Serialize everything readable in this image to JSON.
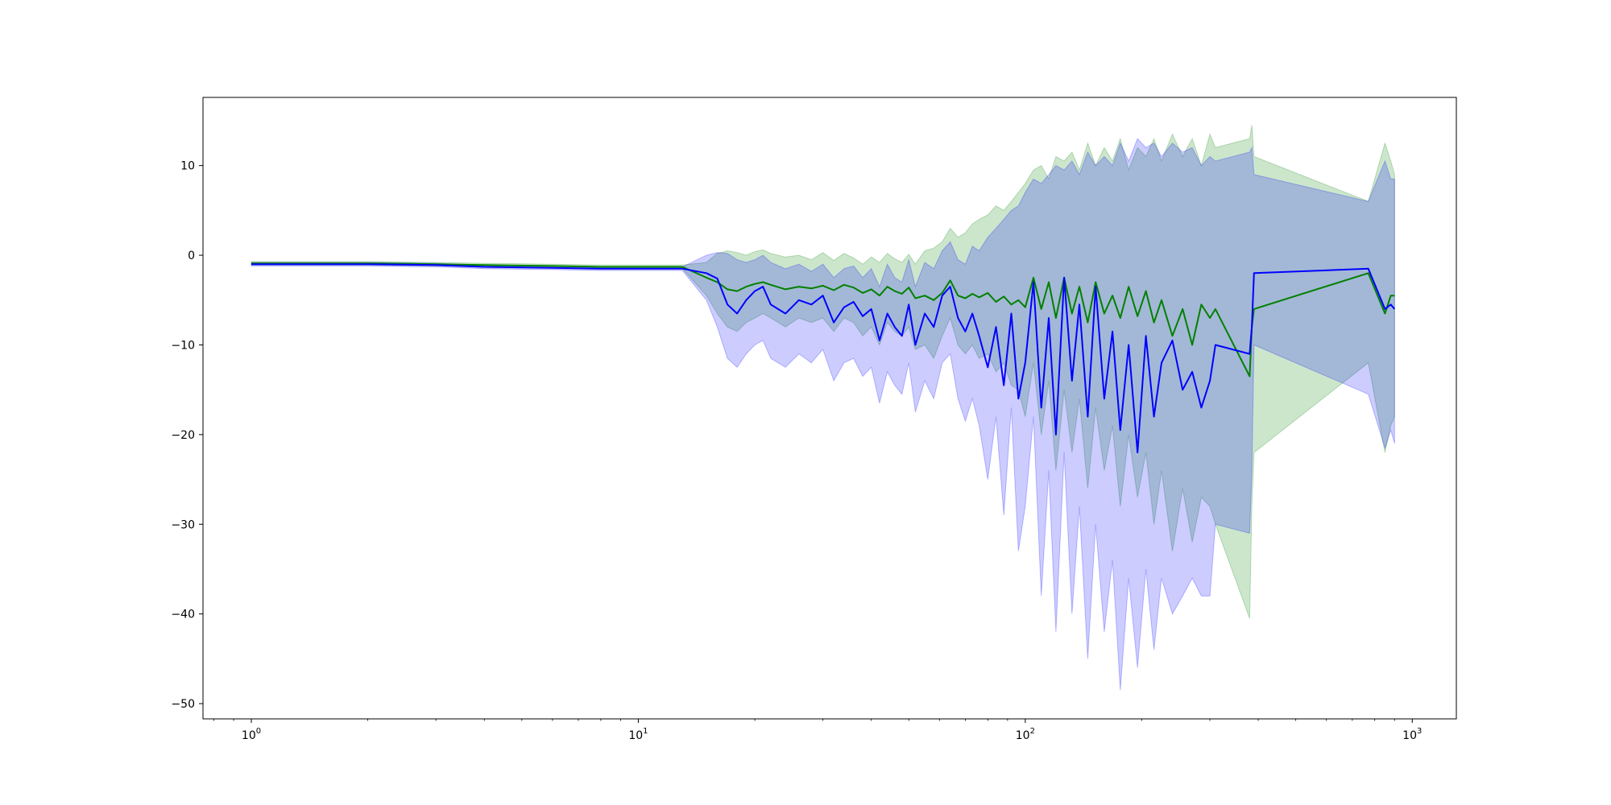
{
  "chart_data": {
    "type": "line",
    "title": "",
    "xlabel": "",
    "ylabel": "",
    "x_scale": "log",
    "xlim": [
      0.75,
      1300
    ],
    "ylim": [
      -51.7,
      17.6
    ],
    "grid": false,
    "legend": "none",
    "x_tick_labels": [
      {
        "value": 1,
        "base": "10",
        "exp": "0"
      },
      {
        "value": 10,
        "base": "10",
        "exp": "1"
      },
      {
        "value": 100,
        "base": "10",
        "exp": "2"
      },
      {
        "value": 1000,
        "base": "10",
        "exp": "3"
      }
    ],
    "y_ticks": [
      10,
      0,
      -10,
      -20,
      -30,
      -40,
      -50
    ],
    "y_tick_labels": [
      "10",
      "0",
      "−10",
      "−20",
      "−30",
      "−40",
      "−50"
    ],
    "series": [
      {
        "color": "#008000",
        "band_color": "#008000",
        "band_opacity": 0.2,
        "x": [
          1,
          2,
          3,
          4,
          6,
          8,
          10,
          13,
          15,
          16,
          17,
          18,
          19,
          20,
          21,
          22,
          24,
          26,
          28,
          30,
          32,
          34,
          36,
          38,
          40,
          42,
          44,
          46,
          48,
          50,
          52,
          55,
          58,
          61,
          64,
          67,
          70,
          73,
          76,
          80,
          84,
          88,
          92,
          96,
          100,
          105,
          110,
          115,
          120,
          126,
          132,
          138,
          145,
          152,
          160,
          168,
          176,
          185,
          195,
          205,
          215,
          225,
          240,
          255,
          270,
          285,
          300,
          310,
          380,
          385,
          390,
          770,
          850,
          880,
          900
        ],
        "y": [
          -0.9,
          -0.9,
          -1.0,
          -1.1,
          -1.2,
          -1.3,
          -1.3,
          -1.3,
          -2.5,
          -3.0,
          -3.8,
          -4.0,
          -3.5,
          -3.2,
          -3.0,
          -3.3,
          -3.8,
          -3.5,
          -3.7,
          -3.4,
          -3.9,
          -3.3,
          -3.6,
          -4.2,
          -3.8,
          -4.5,
          -3.5,
          -4.0,
          -4.3,
          -3.6,
          -4.8,
          -4.5,
          -5.0,
          -4.2,
          -2.8,
          -4.5,
          -4.8,
          -4.3,
          -4.7,
          -4.2,
          -5.2,
          -4.6,
          -5.5,
          -5.0,
          -5.8,
          -2.5,
          -6.0,
          -3.0,
          -7.0,
          -2.5,
          -6.5,
          -3.5,
          -7.5,
          -3.0,
          -6.5,
          -4.5,
          -7.0,
          -3.5,
          -6.8,
          -4.0,
          -7.5,
          -5.0,
          -9.0,
          -6.0,
          -10.0,
          -5.5,
          -7.0,
          -6.0,
          -13.5,
          -8.0,
          -6.0,
          -2.0,
          -6.5,
          -4.5,
          -4.5
        ],
        "lower": [
          -1.1,
          -1.1,
          -1.2,
          -1.3,
          -1.4,
          -1.5,
          -1.5,
          -1.5,
          -4.5,
          -6.5,
          -8.0,
          -8.5,
          -7.5,
          -7.0,
          -6.5,
          -7.0,
          -8.0,
          -7.0,
          -7.5,
          -7.0,
          -8.5,
          -7.0,
          -7.5,
          -9.0,
          -8.0,
          -10.0,
          -7.5,
          -8.5,
          -9.0,
          -8.0,
          -10.5,
          -10.0,
          -11.5,
          -9.0,
          -7.0,
          -10.0,
          -11.0,
          -10.0,
          -11.5,
          -11.0,
          -13.0,
          -12.0,
          -14.5,
          -15.0,
          -18.0,
          -12.0,
          -20.0,
          -14.0,
          -24.0,
          -15.0,
          -22.0,
          -16.0,
          -26.0,
          -17.0,
          -24.0,
          -19.0,
          -28.0,
          -20.0,
          -27.0,
          -22.0,
          -30.0,
          -24.0,
          -33.0,
          -26.0,
          -32.0,
          -27.0,
          -28.0,
          -30.0,
          -40.5,
          -28.0,
          -22.0,
          -12.0,
          -22.0,
          -19.0,
          -18.0
        ],
        "upper": [
          -0.7,
          -0.7,
          -0.8,
          -0.9,
          -1.0,
          -1.1,
          -1.1,
          -1.1,
          -0.8,
          0.2,
          0.5,
          0.3,
          0.0,
          0.4,
          0.6,
          0.2,
          -0.2,
          0.0,
          -0.5,
          0.3,
          -0.6,
          0.2,
          -0.3,
          -1.0,
          -0.2,
          -0.8,
          0.2,
          -0.4,
          -0.8,
          0.1,
          -1.0,
          0.5,
          0.8,
          1.5,
          3.0,
          2.0,
          2.5,
          3.5,
          4.0,
          4.5,
          5.5,
          5.0,
          6.0,
          7.0,
          8.0,
          9.5,
          10.0,
          8.5,
          11.0,
          10.5,
          11.5,
          9.5,
          12.5,
          10.0,
          12.0,
          10.5,
          13.0,
          9.5,
          12.0,
          11.0,
          13.0,
          10.5,
          13.5,
          11.0,
          13.0,
          10.0,
          13.5,
          12.0,
          13.0,
          14.5,
          11.0,
          6.0,
          12.5,
          10.5,
          9.0
        ]
      },
      {
        "color": "#0000ff",
        "band_color": "#0000ff",
        "band_opacity": 0.2,
        "x": [
          1,
          2,
          3,
          4,
          6,
          8,
          10,
          13,
          15,
          16,
          17,
          18,
          19,
          20,
          21,
          22,
          24,
          26,
          28,
          30,
          32,
          34,
          36,
          38,
          40,
          42,
          44,
          46,
          48,
          50,
          52,
          55,
          58,
          61,
          64,
          67,
          70,
          73,
          76,
          80,
          84,
          88,
          92,
          96,
          100,
          105,
          110,
          115,
          120,
          126,
          132,
          138,
          145,
          152,
          160,
          168,
          176,
          185,
          195,
          205,
          215,
          225,
          240,
          255,
          270,
          285,
          300,
          310,
          380,
          385,
          390,
          770,
          850,
          880,
          900
        ],
        "y": [
          -1.0,
          -1.0,
          -1.1,
          -1.3,
          -1.4,
          -1.5,
          -1.5,
          -1.5,
          -2.0,
          -2.6,
          -5.5,
          -6.5,
          -5.0,
          -4.0,
          -3.5,
          -5.5,
          -6.5,
          -5.0,
          -5.5,
          -4.5,
          -7.5,
          -5.8,
          -5.2,
          -6.8,
          -6.0,
          -9.5,
          -6.5,
          -8.0,
          -9.0,
          -5.5,
          -10.0,
          -6.5,
          -8.0,
          -4.5,
          -3.5,
          -7.0,
          -8.5,
          -6.5,
          -9.0,
          -12.5,
          -8.0,
          -14.5,
          -6.5,
          -16.0,
          -12.0,
          -3.0,
          -17.0,
          -7.0,
          -20.0,
          -2.5,
          -14.0,
          -5.5,
          -18.0,
          -3.5,
          -16.0,
          -8.5,
          -19.5,
          -10.0,
          -22.0,
          -9.0,
          -18.0,
          -12.0,
          -9.5,
          -15.0,
          -13.0,
          -17.0,
          -14.0,
          -10.0,
          -11.0,
          -8.0,
          -2.0,
          -1.5,
          -6.0,
          -5.5,
          -6.0
        ],
        "lower": [
          -1.2,
          -1.2,
          -1.3,
          -1.5,
          -1.6,
          -1.7,
          -1.7,
          -1.7,
          -5.0,
          -8.0,
          -11.5,
          -12.5,
          -11.0,
          -10.0,
          -9.5,
          -11.5,
          -12.5,
          -11.0,
          -12.0,
          -10.5,
          -14.0,
          -12.0,
          -11.5,
          -13.5,
          -12.5,
          -16.5,
          -13.0,
          -14.5,
          -15.5,
          -12.0,
          -17.5,
          -14.0,
          -16.0,
          -12.0,
          -11.0,
          -16.0,
          -18.5,
          -16.0,
          -19.0,
          -25.0,
          -18.0,
          -29.0,
          -17.0,
          -33.0,
          -28.0,
          -18.0,
          -38.0,
          -24.0,
          -42.0,
          -22.0,
          -40.0,
          -28.0,
          -45.0,
          -30.0,
          -42.0,
          -34.0,
          -48.5,
          -36.0,
          -46.0,
          -35.0,
          -44.0,
          -36.0,
          -40.0,
          -38.0,
          -36.0,
          -38.0,
          -38.0,
          -30.0,
          -31.0,
          -24.0,
          -10.0,
          -15.5,
          -21.5,
          -19.5,
          -21.0
        ],
        "upper": [
          -0.8,
          -0.8,
          -0.9,
          -1.1,
          -1.2,
          -1.3,
          -1.3,
          -1.3,
          0.0,
          0.3,
          0.2,
          -0.5,
          -0.8,
          -0.5,
          0.0,
          -0.8,
          -1.5,
          -1.0,
          -1.8,
          -1.0,
          -2.5,
          -1.5,
          -1.2,
          -2.5,
          -1.5,
          -3.5,
          -1.0,
          -2.5,
          -3.0,
          -0.5,
          -3.5,
          -0.8,
          -1.5,
          0.5,
          1.5,
          -0.5,
          -1.0,
          1.0,
          0.5,
          2.0,
          3.0,
          4.0,
          5.0,
          5.5,
          7.0,
          8.5,
          8.0,
          9.0,
          10.0,
          9.5,
          10.5,
          9.0,
          11.5,
          10.0,
          11.0,
          10.0,
          12.5,
          10.5,
          13.0,
          12.0,
          12.5,
          11.0,
          12.5,
          11.5,
          12.0,
          10.0,
          11.0,
          10.5,
          11.5,
          12.0,
          9.0,
          6.0,
          10.5,
          8.5,
          8.5
        ]
      }
    ]
  }
}
